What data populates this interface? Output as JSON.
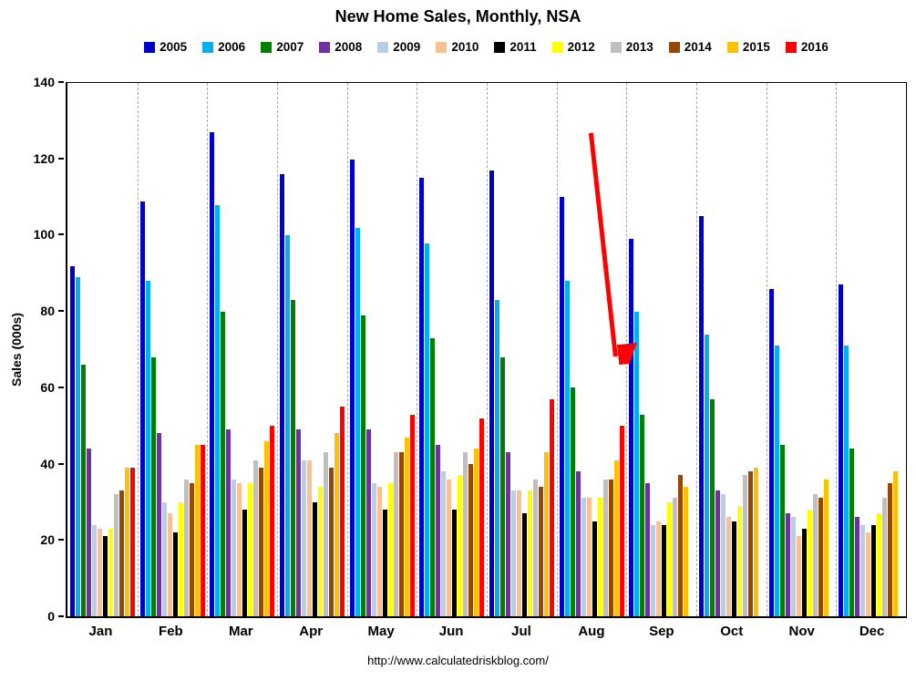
{
  "title": "New Home Sales, Monthly, NSA",
  "footer_url": "http://www.calculatedriskblog.com/",
  "chart_data": {
    "type": "bar",
    "title": "New Home Sales, Monthly, NSA",
    "xlabel": "",
    "ylabel": "Sales (000s)",
    "ylim": [
      0,
      140
    ],
    "yticks": [
      0,
      20,
      40,
      60,
      80,
      100,
      120,
      140
    ],
    "grid": "vertical-dashed",
    "legend_position": "top",
    "categories": [
      "Jan",
      "Feb",
      "Mar",
      "Apr",
      "May",
      "Jun",
      "Jul",
      "Aug",
      "Sep",
      "Oct",
      "Nov",
      "Dec"
    ],
    "series": [
      {
        "name": "2005",
        "color": "#0000CC",
        "values": [
          92,
          109,
          127,
          116,
          120,
          115,
          117,
          110,
          99,
          105,
          86,
          87
        ]
      },
      {
        "name": "2006",
        "color": "#00B0F0",
        "values": [
          89,
          88,
          108,
          100,
          102,
          98,
          83,
          88,
          80,
          74,
          71,
          71
        ]
      },
      {
        "name": "2007",
        "color": "#008000",
        "values": [
          66,
          68,
          80,
          83,
          79,
          73,
          68,
          60,
          53,
          57,
          45,
          44
        ]
      },
      {
        "name": "2008",
        "color": "#7030A0",
        "values": [
          44,
          48,
          49,
          49,
          49,
          45,
          43,
          38,
          35,
          33,
          27,
          26
        ]
      },
      {
        "name": "2009",
        "color": "#B9CDE5",
        "values": [
          24,
          30,
          36,
          41,
          35,
          38,
          33,
          31,
          24,
          32,
          26,
          24
        ]
      },
      {
        "name": "2010",
        "color": "#FAC090",
        "values": [
          23,
          27,
          35,
          41,
          34,
          36,
          33,
          31,
          25,
          26,
          21,
          22
        ]
      },
      {
        "name": "2011",
        "color": "#000000",
        "values": [
          21,
          22,
          28,
          30,
          28,
          28,
          27,
          25,
          24,
          25,
          23,
          24
        ]
      },
      {
        "name": "2012",
        "color": "#FFFF00",
        "values": [
          23,
          30,
          35,
          34,
          35,
          37,
          33,
          31,
          30,
          29,
          28,
          27
        ]
      },
      {
        "name": "2013",
        "color": "#BFBFBF",
        "values": [
          32,
          36,
          41,
          43,
          43,
          43,
          36,
          36,
          31,
          37,
          32,
          31
        ]
      },
      {
        "name": "2014",
        "color": "#974706",
        "values": [
          33,
          35,
          39,
          39,
          43,
          40,
          34,
          36,
          37,
          38,
          31,
          35
        ]
      },
      {
        "name": "2015",
        "color": "#FFC000",
        "values": [
          39,
          45,
          46,
          48,
          47,
          44,
          43,
          41,
          34,
          39,
          36,
          38
        ]
      },
      {
        "name": "2016",
        "color": "#FF0000",
        "values": [
          39,
          45,
          50,
          55,
          53,
          52,
          57,
          50,
          null,
          null,
          null,
          null
        ]
      }
    ],
    "annotations": [
      {
        "type": "arrow",
        "color": "#FF0000",
        "note": "points down to the Aug 2016 bar"
      }
    ]
  }
}
